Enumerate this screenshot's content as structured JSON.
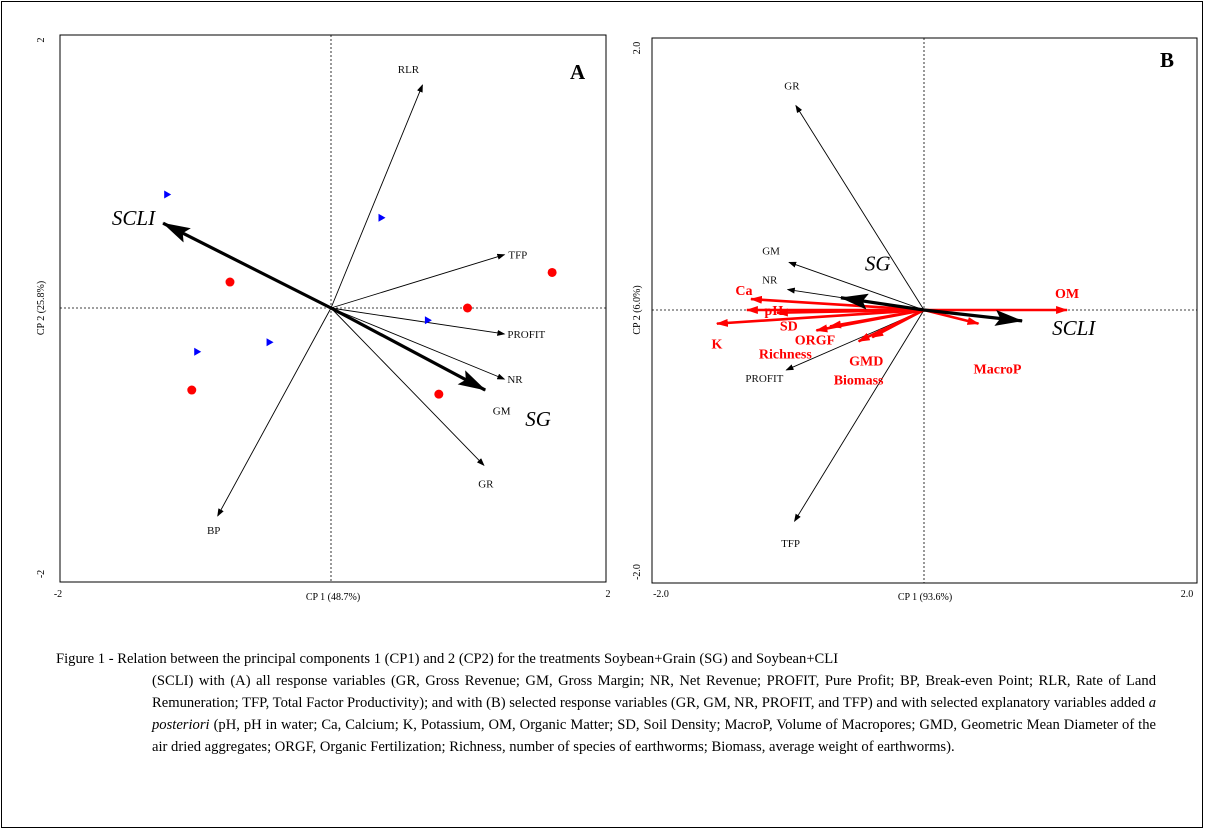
{
  "chart_data": [
    {
      "type": "scatter",
      "panel_label": "A",
      "xlabel": "CP 1 (48.7%)",
      "ylabel": "CP 2 (25.8%)",
      "xlim": [
        -2,
        2
      ],
      "ylim": [
        -2,
        2
      ],
      "x_tick_labels": [
        "-2",
        "2"
      ],
      "y_tick_labels": [
        "2",
        "-2"
      ],
      "grid": false,
      "response_vectors": [
        {
          "label": "RLR",
          "x": 0.67,
          "y": 1.63
        },
        {
          "label": "TFP",
          "x": 1.27,
          "y": 0.39
        },
        {
          "label": "PROFIT",
          "x": 1.27,
          "y": -0.19
        },
        {
          "label": "NR",
          "x": 1.27,
          "y": -0.52
        },
        {
          "label": "GR",
          "x": 1.12,
          "y": -1.15
        },
        {
          "label": "BP",
          "x": -0.83,
          "y": -1.52
        }
      ],
      "treatment_vectors": [
        {
          "label": "SCLI",
          "x": -1.23,
          "y": 0.62
        },
        {
          "label": "SG",
          "x": 1.13,
          "y": -0.6
        }
      ],
      "free_labels": [
        {
          "text": "GM",
          "x": 1.25,
          "y": -0.78
        }
      ],
      "points": [
        {
          "group": "SCLI",
          "marker": "triangle",
          "color": "#0000ff",
          "x": -1.2,
          "y": 0.83
        },
        {
          "group": "SCLI",
          "marker": "triangle",
          "color": "#0000ff",
          "x": 0.37,
          "y": 0.66
        },
        {
          "group": "SCLI",
          "marker": "triangle",
          "color": "#0000ff",
          "x": 0.71,
          "y": -0.09
        },
        {
          "group": "SCLI",
          "marker": "triangle",
          "color": "#0000ff",
          "x": -0.45,
          "y": -0.25
        },
        {
          "group": "SCLI",
          "marker": "triangle",
          "color": "#0000ff",
          "x": -0.98,
          "y": -0.32
        },
        {
          "group": "SG",
          "marker": "circle",
          "color": "#ff0000",
          "x": -0.74,
          "y": 0.19
        },
        {
          "group": "SG",
          "marker": "circle",
          "color": "#ff0000",
          "x": 1.0,
          "y": 0.0
        },
        {
          "group": "SG",
          "marker": "circle",
          "color": "#ff0000",
          "x": 1.62,
          "y": 0.26
        },
        {
          "group": "SG",
          "marker": "circle",
          "color": "#ff0000",
          "x": -1.02,
          "y": -0.6
        },
        {
          "group": "SG",
          "marker": "circle",
          "color": "#ff0000",
          "x": 0.79,
          "y": -0.63
        }
      ]
    },
    {
      "type": "scatter",
      "panel_label": "B",
      "xlabel": "CP 1 (93.6%)",
      "ylabel": "CP 2 (6.0%)",
      "xlim": [
        -2.0,
        2.0
      ],
      "ylim": [
        -2.0,
        2.0
      ],
      "x_tick_labels": [
        "-2.0",
        "2.0"
      ],
      "y_tick_labels": [
        "2.0",
        "-2.0"
      ],
      "grid": false,
      "response_vectors": [
        {
          "label": "GR",
          "x": -0.94,
          "y": 1.5
        },
        {
          "label": "GM",
          "x": -0.99,
          "y": 0.35
        },
        {
          "label": "NR",
          "x": -1.0,
          "y": 0.15
        },
        {
          "label": "PROFIT",
          "x": -1.01,
          "y": -0.44
        },
        {
          "label": "TFP",
          "x": -0.95,
          "y": -1.55
        }
      ],
      "explanatory_vectors": [
        {
          "label": "OM",
          "x": 1.05,
          "y": 0.0
        },
        {
          "label": "Ca",
          "x": -1.27,
          "y": 0.08
        },
        {
          "label": "pH",
          "x": -1.3,
          "y": 0.0
        },
        {
          "label": "SD",
          "x": -1.08,
          "y": -0.02
        },
        {
          "label": "K",
          "x": -1.52,
          "y": -0.1
        },
        {
          "label": "ORGF",
          "x": -0.69,
          "y": -0.12
        },
        {
          "label": "Richness",
          "x": -0.79,
          "y": -0.15
        },
        {
          "label": "GMD",
          "x": -0.38,
          "y": -0.2
        },
        {
          "label": "Biomass",
          "x": -0.48,
          "y": -0.23
        },
        {
          "label": "MacroP",
          "x": 0.4,
          "y": -0.1
        }
      ],
      "treatment_vectors": [
        {
          "label": "SCLI",
          "x": 0.72,
          "y": -0.08
        },
        {
          "label": "SG",
          "x": -0.61,
          "y": 0.09
        }
      ]
    }
  ],
  "caption": {
    "lead": "Figure 1 - Relation between the principal components 1 (CP1) and 2 (CP2) for the treatments Soybean+Grain (SG) and Soybean+CLI",
    "body_before_italic": "(SCLI) with (A) all response variables (GR, Gross Revenue; GM, Gross Margin; NR, Net Revenue; PROFIT, Pure Profit; BP, Break-even Point; RLR, Rate of Land Remuneration; TFP, Total Factor Productivity); and with (B) selected response variables (GR, GM, NR, PROFIT, and TFP) and with selected explanatory variables added",
    "italic": "a posteriori",
    "body_after_italic": "(pH, pH in water; Ca, Calcium; K, Potassium, OM, Organic Matter; SD, Soil Density; MacroP, Volume of Macropores; GMD, Geometric Mean Diameter of the air dried aggregates; ORGF, Organic Fertilization; Richness, number of species of earthworms; Biomass, average weight of earthworms)."
  },
  "colors": {
    "treatment_vector": "#000000",
    "response_vector": "#000000",
    "explanatory_vector": "#ff0000",
    "scli_points": "#0000ff",
    "sg_points": "#ff0000"
  }
}
